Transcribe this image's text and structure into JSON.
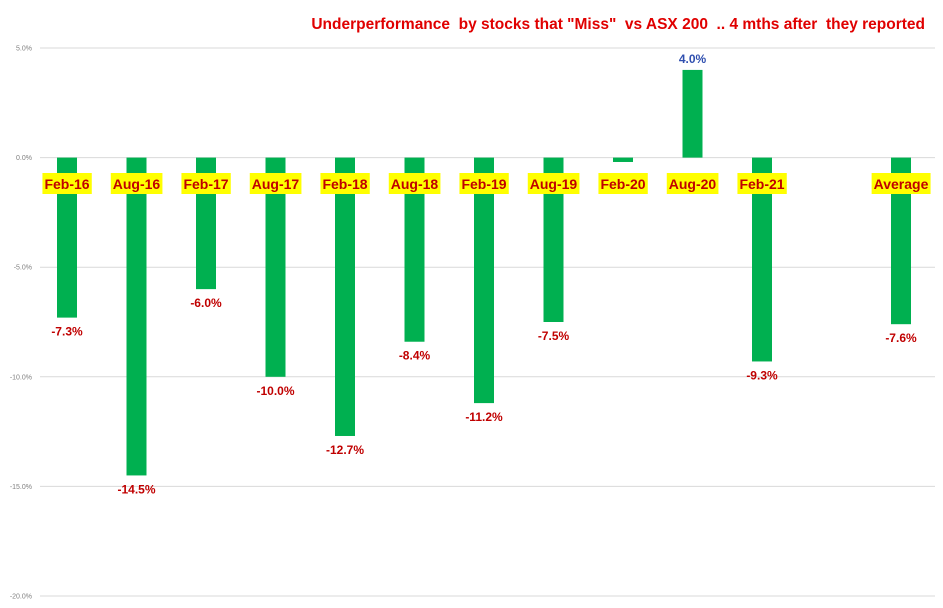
{
  "chart_data": {
    "type": "bar",
    "title": "Underperformance  by stocks that \"Miss\"  vs ASX 200  .. 4 mths after  they reported",
    "categories": [
      "Feb-16",
      "Aug-16",
      "Feb-17",
      "Aug-17",
      "Feb-18",
      "Aug-18",
      "Feb-19",
      "Aug-19",
      "Feb-20",
      "Aug-20",
      "Feb-21",
      "",
      "Average"
    ],
    "values": [
      -7.3,
      -14.5,
      -6.0,
      -10.0,
      -12.7,
      -8.4,
      -11.2,
      -7.5,
      -0.2,
      4.0,
      -9.3,
      null,
      -7.6
    ],
    "data_labels": [
      "-7.3%",
      "-14.5%",
      "-6.0%",
      "-10.0%",
      "-12.7%",
      "-8.4%",
      "-11.2%",
      "-7.5%",
      "",
      "4.0%",
      "-9.3%",
      "",
      "-7.6%"
    ],
    "y_ticks": [
      "5.0%",
      "0.0%",
      "-5.0%",
      "-10.0%",
      "-15.0%",
      "-20.0%"
    ],
    "y_tick_values": [
      5,
      0,
      -5,
      -10,
      -15,
      -20
    ],
    "ylim": [
      -20,
      5
    ],
    "xlabel": "",
    "ylabel": "",
    "grid": true,
    "colors": {
      "bar": "#00b050",
      "negative_label": "#c00000",
      "positive_label": "#2f4faf",
      "category_label": "#c00000",
      "category_label_bg": "#ffff00",
      "title": "#e00000",
      "gridline": "#d9d9d9",
      "tick_label": "#808080"
    }
  }
}
